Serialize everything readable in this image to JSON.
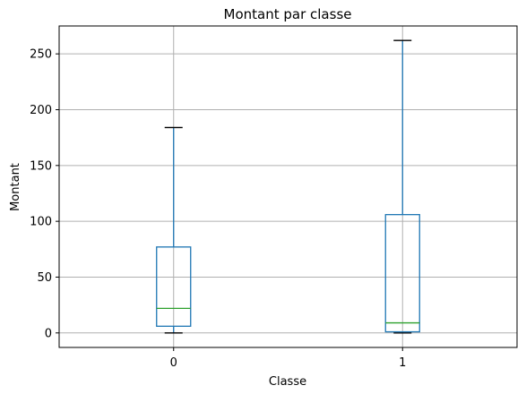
{
  "chart_data": {
    "type": "boxplot",
    "title": "Montant par classe",
    "xlabel": "Classe",
    "ylabel": "Montant",
    "categories": [
      "0",
      "1"
    ],
    "boxes": [
      {
        "category": "0",
        "whisker_low": 0,
        "q1": 6,
        "median": 22,
        "q3": 77,
        "whisker_high": 184
      },
      {
        "category": "1",
        "whisker_low": 0,
        "q1": 1,
        "median": 9,
        "q3": 106,
        "whisker_high": 262
      }
    ],
    "yticks": [
      0,
      50,
      100,
      150,
      200,
      250
    ],
    "ylim": [
      -13,
      275
    ],
    "grid": true,
    "colors": {
      "box": "#1f77b4",
      "median": "#2ca02c",
      "cap": "#000000",
      "grid": "#b0b0b0"
    }
  }
}
